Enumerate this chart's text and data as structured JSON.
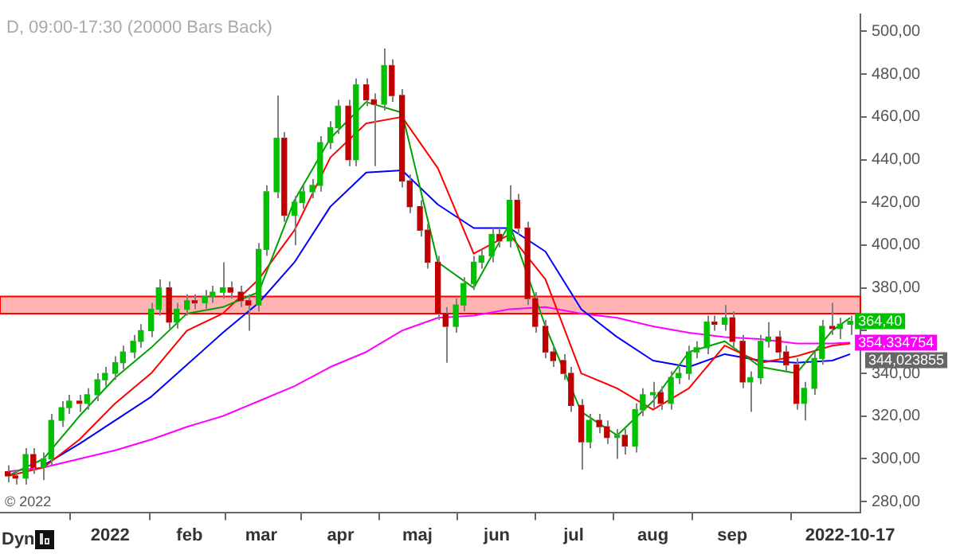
{
  "chart_data": {
    "type": "candlestick",
    "title": "D, 09:00-17:30 (20000 Bars Back)",
    "x": [
      "2021-11-22",
      "2021-11-25",
      "2021-11-29",
      "2021-12-02",
      "2021-12-06",
      "2021-12-09",
      "2021-12-13",
      "2021-12-16",
      "2021-12-20",
      "2021-12-23",
      "2021-12-27",
      "2021-12-30",
      "2022-01-03",
      "2022-01-06",
      "2022-01-10",
      "2022-01-13",
      "2022-01-17",
      "2022-01-20",
      "2022-01-24",
      "2022-01-27",
      "2022-01-31",
      "2022-02-03",
      "2022-02-07",
      "2022-02-10",
      "2022-02-14",
      "2022-02-17",
      "2022-02-21",
      "2022-02-24",
      "2022-02-28",
      "2022-03-03",
      "2022-03-07",
      "2022-03-10",
      "2022-03-14",
      "2022-03-17",
      "2022-03-21",
      "2022-03-24",
      "2022-03-28",
      "2022-03-31",
      "2022-04-04",
      "2022-04-07",
      "2022-04-11",
      "2022-04-14",
      "2022-04-18",
      "2022-04-21",
      "2022-04-25",
      "2022-04-28",
      "2022-05-02",
      "2022-05-05",
      "2022-05-09",
      "2022-05-12",
      "2022-05-16",
      "2022-05-19",
      "2022-05-23",
      "2022-05-26",
      "2022-05-30",
      "2022-06-02",
      "2022-06-06",
      "2022-06-09",
      "2022-06-13",
      "2022-06-16",
      "2022-06-20",
      "2022-06-23",
      "2022-06-27",
      "2022-06-30",
      "2022-07-04",
      "2022-07-07",
      "2022-07-11",
      "2022-07-14",
      "2022-07-18",
      "2022-07-21",
      "2022-07-25",
      "2022-07-28",
      "2022-08-01",
      "2022-08-04",
      "2022-08-08",
      "2022-08-11",
      "2022-08-15",
      "2022-08-18",
      "2022-08-22",
      "2022-08-25",
      "2022-08-29",
      "2022-09-01",
      "2022-09-05",
      "2022-09-08",
      "2022-09-12",
      "2022-09-15",
      "2022-09-19",
      "2022-09-22",
      "2022-09-26",
      "2022-09-29",
      "2022-10-03",
      "2022-10-06",
      "2022-10-10",
      "2022-10-13",
      "2022-10-17"
    ],
    "ohlc": [
      [
        294,
        297,
        289,
        292
      ],
      [
        292,
        295,
        288,
        291
      ],
      [
        291,
        305,
        288,
        302
      ],
      [
        302,
        305,
        293,
        296
      ],
      [
        296,
        303,
        290,
        300
      ],
      [
        300,
        321,
        297,
        318
      ],
      [
        318,
        327,
        315,
        324
      ],
      [
        324,
        330,
        321,
        327
      ],
      [
        327,
        330,
        322,
        326
      ],
      [
        326,
        333,
        323,
        330
      ],
      [
        330,
        340,
        327,
        337
      ],
      [
        337,
        343,
        334,
        340
      ],
      [
        340,
        348,
        337,
        345
      ],
      [
        345,
        353,
        342,
        350
      ],
      [
        350,
        358,
        347,
        355
      ],
      [
        355,
        363,
        352,
        360
      ],
      [
        360,
        373,
        357,
        370
      ],
      [
        370,
        384,
        367,
        380
      ],
      [
        380,
        383,
        361,
        364
      ],
      [
        364,
        373,
        361,
        370
      ],
      [
        370,
        377,
        367,
        374
      ],
      [
        374,
        377,
        370,
        373
      ],
      [
        373,
        379,
        370,
        376
      ],
      [
        376,
        381,
        373,
        378
      ],
      [
        378,
        392,
        375,
        380
      ],
      [
        380,
        383,
        375,
        378
      ],
      [
        378,
        381,
        371,
        374
      ],
      [
        374,
        377,
        360,
        372
      ],
      [
        372,
        401,
        369,
        398
      ],
      [
        398,
        428,
        395,
        425
      ],
      [
        425,
        470,
        422,
        450
      ],
      [
        450,
        453,
        411,
        414
      ],
      [
        414,
        423,
        400,
        420
      ],
      [
        420,
        428,
        417,
        425
      ],
      [
        425,
        431,
        422,
        428
      ],
      [
        428,
        451,
        425,
        448
      ],
      [
        448,
        458,
        445,
        455
      ],
      [
        455,
        468,
        452,
        465
      ],
      [
        465,
        468,
        437,
        440
      ],
      [
        440,
        478,
        437,
        475
      ],
      [
        475,
        478,
        465,
        468
      ],
      [
        468,
        471,
        437,
        466
      ],
      [
        466,
        492,
        463,
        484
      ],
      [
        484,
        487,
        467,
        470
      ],
      [
        470,
        473,
        427,
        430
      ],
      [
        430,
        433,
        415,
        418
      ],
      [
        418,
        421,
        404,
        407
      ],
      [
        407,
        410,
        389,
        392
      ],
      [
        392,
        395,
        365,
        368
      ],
      [
        368,
        371,
        345,
        362
      ],
      [
        362,
        375,
        359,
        372
      ],
      [
        372,
        385,
        369,
        382
      ],
      [
        382,
        395,
        379,
        392
      ],
      [
        392,
        398,
        389,
        395
      ],
      [
        395,
        408,
        392,
        405
      ],
      [
        405,
        408,
        399,
        402
      ],
      [
        402,
        428,
        399,
        421
      ],
      [
        421,
        424,
        405,
        408
      ],
      [
        408,
        411,
        372,
        375
      ],
      [
        375,
        378,
        359,
        362
      ],
      [
        362,
        365,
        347,
        350
      ],
      [
        350,
        353,
        343,
        346
      ],
      [
        346,
        349,
        337,
        340
      ],
      [
        340,
        343,
        322,
        325
      ],
      [
        325,
        328,
        295,
        308
      ],
      [
        308,
        321,
        305,
        318
      ],
      [
        318,
        321,
        312,
        315
      ],
      [
        315,
        318,
        307,
        310
      ],
      [
        310,
        314,
        300,
        311
      ],
      [
        311,
        314,
        302,
        306
      ],
      [
        306,
        326,
        303,
        323
      ],
      [
        323,
        333,
        320,
        330
      ],
      [
        330,
        336,
        324,
        331
      ],
      [
        331,
        334,
        323,
        326
      ],
      [
        326,
        341,
        323,
        338
      ],
      [
        338,
        343,
        335,
        340
      ],
      [
        340,
        353,
        337,
        350
      ],
      [
        350,
        355,
        347,
        352
      ],
      [
        352,
        367,
        349,
        364
      ],
      [
        364,
        367,
        360,
        363
      ],
      [
        363,
        372,
        360,
        366
      ],
      [
        366,
        369,
        352,
        355
      ],
      [
        355,
        358,
        333,
        336
      ],
      [
        336,
        341,
        322,
        338
      ],
      [
        338,
        358,
        335,
        355
      ],
      [
        355,
        364,
        352,
        357
      ],
      [
        357,
        360,
        347,
        350
      ],
      [
        350,
        353,
        341,
        344
      ],
      [
        344,
        347,
        323,
        326
      ],
      [
        326,
        336,
        318,
        333
      ],
      [
        333,
        350,
        330,
        347
      ],
      [
        347,
        365,
        344,
        362
      ],
      [
        362,
        373,
        358,
        361
      ],
      [
        361,
        366,
        356,
        363
      ],
      [
        363,
        367,
        358,
        364.4
      ]
    ],
    "colors": [
      "#c00000",
      "#c00000",
      "#00c000",
      "#c00000",
      "#00c000",
      "#00c000",
      "#00c000",
      "#00c000",
      "#c00000",
      "#00c000",
      "#00c000",
      "#00c000",
      "#00c000",
      "#00c000",
      "#00c000",
      "#00c000",
      "#00c000",
      "#00c000",
      "#c00000",
      "#00c000",
      "#00c000",
      "#c00000",
      "#00c000",
      "#00c000",
      "#00c000",
      "#c00000",
      "#c00000",
      "#c00000",
      "#00c000",
      "#00c000",
      "#00c000",
      "#c00000",
      "#00c000",
      "#00c000",
      "#00c000",
      "#00c000",
      "#00c000",
      "#00c000",
      "#c00000",
      "#00c000",
      "#c00000",
      "#c00000",
      "#00c000",
      "#c00000",
      "#c00000",
      "#c00000",
      "#c00000",
      "#c00000",
      "#c00000",
      "#c00000",
      "#00c000",
      "#00c000",
      "#00c000",
      "#00c000",
      "#00c000",
      "#c00000",
      "#00c000",
      "#c00000",
      "#c00000",
      "#c00000",
      "#c00000",
      "#c00000",
      "#c00000",
      "#c00000",
      "#c00000",
      "#00c000",
      "#c00000",
      "#c00000",
      "#00c000",
      "#c00000",
      "#00c000",
      "#00c000",
      "#00c000",
      "#c00000",
      "#00c000",
      "#00c000",
      "#00c000",
      "#00c000",
      "#00c000",
      "#c00000",
      "#00c000",
      "#c00000",
      "#c00000",
      "#00c000",
      "#00c000",
      "#00c000",
      "#c00000",
      "#c00000",
      "#c00000",
      "#00c000",
      "#00c000",
      "#00c000",
      "#c00000",
      "#00c000",
      "#00c000"
    ],
    "series": [
      {
        "type": "line",
        "color": "#00a000",
        "x": [
          "2021-11-22",
          "2021-12-06",
          "2021-12-20",
          "2022-01-03",
          "2022-01-17",
          "2022-01-31",
          "2022-02-14",
          "2022-02-28",
          "2022-03-14",
          "2022-03-28",
          "2022-04-11",
          "2022-04-25",
          "2022-05-09",
          "2022-05-23",
          "2022-06-06",
          "2022-06-20",
          "2022-07-04",
          "2022-07-18",
          "2022-08-01",
          "2022-08-15",
          "2022-08-29",
          "2022-09-12",
          "2022-09-26",
          "2022-10-10",
          "2022-10-17"
        ],
        "values": [
          292,
          300,
          320,
          338,
          352,
          368,
          371,
          378,
          421,
          450,
          467,
          462,
          392,
          380,
          410,
          362,
          322,
          311,
          327,
          350,
          355,
          343,
          340,
          360,
          366
        ]
      },
      {
        "type": "line",
        "color": "#ff0000",
        "x": [
          "2021-11-22",
          "2021-12-06",
          "2021-12-20",
          "2022-01-03",
          "2022-01-17",
          "2022-01-31",
          "2022-02-14",
          "2022-02-28",
          "2022-03-14",
          "2022-03-28",
          "2022-04-11",
          "2022-04-25",
          "2022-05-09",
          "2022-05-23",
          "2022-06-06",
          "2022-06-20",
          "2022-07-04",
          "2022-07-18",
          "2022-08-01",
          "2022-08-15",
          "2022-08-29",
          "2022-09-12",
          "2022-09-26",
          "2022-10-10",
          "2022-10-17"
        ],
        "values": [
          292,
          296,
          309,
          326,
          340,
          360,
          368,
          384,
          407,
          441,
          457,
          460,
          436,
          396,
          405,
          384,
          340,
          333,
          323,
          333,
          353,
          345,
          348,
          353,
          354
        ]
      },
      {
        "type": "line",
        "color": "#0000ff",
        "x": [
          "2021-12-06",
          "2021-12-20",
          "2022-01-03",
          "2022-01-17",
          "2022-01-31",
          "2022-02-14",
          "2022-02-28",
          "2022-03-14",
          "2022-03-28",
          "2022-04-11",
          "2022-04-25",
          "2022-05-09",
          "2022-05-23",
          "2022-06-06",
          "2022-06-20",
          "2022-07-04",
          "2022-07-18",
          "2022-08-01",
          "2022-08-15",
          "2022-08-29",
          "2022-09-12",
          "2022-09-26",
          "2022-10-10",
          "2022-10-17"
        ],
        "values": [
          297,
          307,
          318,
          329,
          344,
          359,
          373,
          392,
          418,
          434,
          435,
          419,
          408,
          408,
          397,
          370,
          357,
          346,
          343,
          349,
          346,
          345,
          346,
          349
        ]
      },
      {
        "type": "line",
        "color": "#ff00ff",
        "x": [
          "2021-11-22",
          "2021-12-06",
          "2021-12-20",
          "2022-01-03",
          "2022-01-17",
          "2022-01-31",
          "2022-02-14",
          "2022-02-28",
          "2022-03-14",
          "2022-03-28",
          "2022-04-11",
          "2022-04-25",
          "2022-05-09",
          "2022-05-23",
          "2022-06-06",
          "2022-06-20",
          "2022-07-04",
          "2022-07-18",
          "2022-08-01",
          "2022-08-15",
          "2022-08-29",
          "2022-09-12",
          "2022-09-26",
          "2022-10-10",
          "2022-10-17"
        ],
        "values": [
          294,
          296,
          300,
          304,
          309,
          315,
          320,
          327,
          334,
          343,
          350,
          360,
          366,
          367,
          370,
          371,
          368,
          366,
          362,
          359,
          357,
          356,
          354,
          354,
          354.334754
        ],
        "value_labels": [
          null,
          null,
          null,
          null,
          null,
          null,
          null,
          null,
          null,
          null,
          null,
          null,
          null,
          null,
          null,
          null,
          null,
          null,
          null,
          null,
          null,
          null,
          null,
          null,
          "354,334754"
        ]
      }
    ],
    "bands": [
      {
        "axis": "y",
        "from": 368,
        "to": 376,
        "color": "#ffb3b3"
      }
    ],
    "annotations": [
      "© 2022",
      "Dyn",
      {
        "text": "364,40",
        "x": "2022-10-17",
        "y": 364.4
      },
      "344,023855"
    ],
    "xlim": [
      "2021-11-19",
      "2022-10-21"
    ],
    "xticks": [
      {
        "value": "2022-01-01",
        "label": "2022"
      },
      {
        "value": "2022-02-01",
        "label": "feb"
      },
      {
        "value": "2022-03-01",
        "label": "mar"
      },
      {
        "value": "2022-04-01",
        "label": "apr"
      },
      {
        "value": "2022-05-01",
        "label": "maj"
      },
      {
        "value": "2022-06-01",
        "label": "jun"
      },
      {
        "value": "2022-07-01",
        "label": "jul"
      },
      {
        "value": "2022-08-01",
        "label": "aug"
      },
      {
        "value": "2022-09-01",
        "label": "sep"
      },
      {
        "value": "2022-10-17",
        "label": "2022-10-17"
      }
    ],
    "ylim": [
      275,
      508
    ],
    "yticks": [
      {
        "value": 280,
        "label": "280,00"
      },
      {
        "value": 300,
        "label": "300,00"
      },
      {
        "value": 320,
        "label": "320,00"
      },
      {
        "value": 340,
        "label": "340,00"
      },
      {
        "value": 360,
        "label": null
      },
      {
        "value": 380,
        "label": "380,00"
      },
      {
        "value": 400,
        "label": "400,00"
      },
      {
        "value": 420,
        "label": "420,00"
      },
      {
        "value": 440,
        "label": "440,00"
      },
      {
        "value": 460,
        "label": "460,00"
      },
      {
        "value": 480,
        "label": "480,00"
      },
      {
        "value": 500,
        "label": "500,00"
      }
    ]
  }
}
